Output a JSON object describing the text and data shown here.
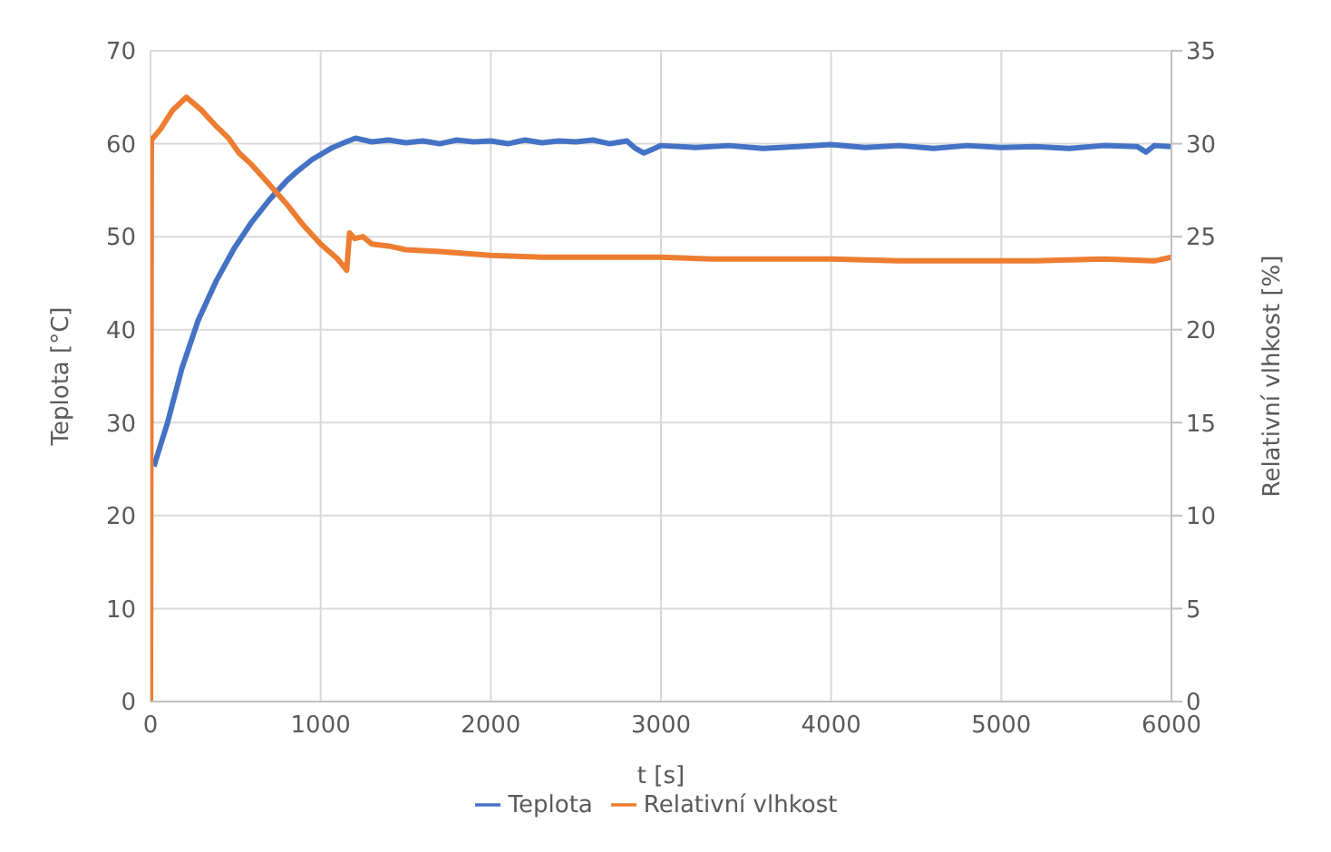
{
  "chart_data": {
    "type": "line",
    "xlabel": "t [s]",
    "ylabel": "Teplota [°C]",
    "y2label": "Relativní vlhkost [%]",
    "xlim": [
      0,
      6000
    ],
    "xticks": [
      0,
      1000,
      2000,
      3000,
      4000,
      5000,
      6000
    ],
    "ylim": [
      0,
      70
    ],
    "yticks": [
      0,
      10,
      20,
      30,
      40,
      50,
      60,
      70
    ],
    "y2lim": [
      0,
      35
    ],
    "y2ticks": [
      0,
      5,
      10,
      15,
      20,
      25,
      30,
      35
    ],
    "grid": true,
    "legend": "bottom",
    "marker": "none",
    "line_style": "solid",
    "series": [
      {
        "name": "Teplota",
        "color": "#4472c4",
        "x": [
          20,
          100,
          184,
          280,
          388,
          490,
          592,
          700,
          800,
          867,
          950,
          1071,
          1150,
          1204,
          1300,
          1400,
          1500,
          1600,
          1700,
          1800,
          1900,
          2000,
          2100,
          2200,
          2300,
          2400,
          2500,
          2600,
          2700,
          2800,
          2850,
          2900,
          2950,
          3000,
          3200,
          3400,
          3600,
          3800,
          4000,
          4200,
          4400,
          4600,
          4800,
          5000,
          5200,
          5400,
          5600,
          5800,
          5850,
          5900,
          6000
        ],
        "values": [
          25.3,
          30,
          35.8,
          41,
          45.3,
          48.7,
          51.5,
          54,
          56,
          57.1,
          58.3,
          59.6,
          60.2,
          60.6,
          60.2,
          60.4,
          60.1,
          60.3,
          60,
          60.4,
          60.2,
          60.3,
          60,
          60.4,
          60.1,
          60.3,
          60.2,
          60.4,
          60,
          60.3,
          59.5,
          59,
          59.4,
          59.8,
          59.6,
          59.8,
          59.5,
          59.7,
          59.9,
          59.6,
          59.8,
          59.5,
          59.8,
          59.6,
          59.7,
          59.5,
          59.8,
          59.7,
          59.1,
          59.8,
          59.7
        ]
      },
      {
        "name": "Relativní vlhkost",
        "color": "#ed7d31",
        "axis": "y2",
        "x": [
          0,
          5,
          60,
          130,
          211,
          300,
          380,
          459,
          520,
          592,
          700,
          796,
          900,
          1000,
          1100,
          1153,
          1170,
          1200,
          1250,
          1300,
          1400,
          1500,
          1700,
          2000,
          2300,
          2500,
          2800,
          3000,
          3300,
          3600,
          4000,
          4400,
          4800,
          5200,
          5600,
          5900,
          6000
        ],
        "values": [
          0,
          30.2,
          30.8,
          31.8,
          32.5,
          31.8,
          31,
          30.3,
          29.5,
          28.9,
          27.8,
          26.8,
          25.6,
          24.6,
          23.8,
          23.2,
          25.2,
          24.9,
          25,
          24.6,
          24.5,
          24.3,
          24.2,
          24,
          23.9,
          23.9,
          23.9,
          23.9,
          23.8,
          23.8,
          23.8,
          23.7,
          23.7,
          23.7,
          23.8,
          23.7,
          23.9
        ]
      }
    ]
  }
}
